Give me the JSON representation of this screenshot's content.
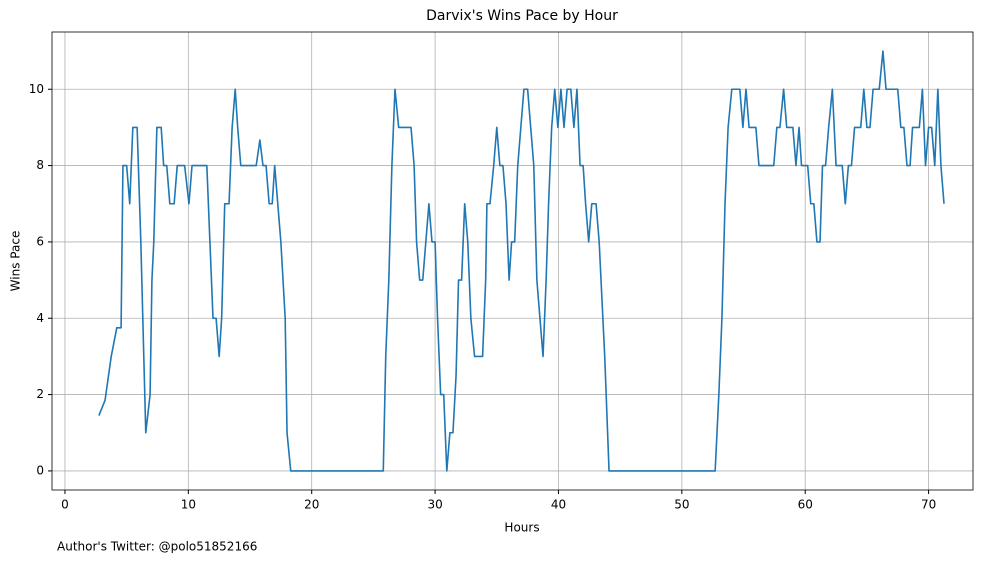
{
  "chart_data": {
    "type": "line",
    "title": "Darvix's Wins Pace by Hour",
    "x_label": "Hours",
    "y_label": "Wins Pace",
    "annotation": "Author's Twitter: @polo51852166",
    "xlim": [
      -1.05,
      73.6
    ],
    "ylim": [
      -0.5,
      11.5
    ],
    "xticks": [
      0,
      10,
      20,
      30,
      40,
      50,
      60,
      70
    ],
    "yticks": [
      0,
      2,
      4,
      6,
      8,
      10
    ],
    "grid": true,
    "x": [
      2.75,
      3.25,
      3.75,
      4.2,
      4.55,
      4.7,
      5.0,
      5.25,
      5.5,
      5.85,
      6.15,
      6.55,
      6.9,
      7.05,
      7.2,
      7.45,
      7.8,
      8.0,
      8.25,
      8.5,
      8.85,
      9.1,
      9.7,
      10.05,
      10.3,
      11.5,
      12.0,
      12.25,
      12.5,
      12.7,
      12.95,
      13.3,
      13.55,
      13.8,
      14.0,
      14.25,
      15.5,
      15.8,
      16.05,
      16.3,
      16.55,
      16.8,
      17.0,
      17.5,
      17.85,
      18.0,
      18.3,
      25.8,
      26.0,
      26.25,
      26.5,
      26.75,
      27.05,
      28.05,
      28.3,
      28.5,
      28.75,
      29.0,
      29.25,
      29.5,
      29.75,
      30.0,
      30.2,
      30.45,
      30.7,
      30.95,
      31.2,
      31.45,
      31.7,
      31.9,
      32.15,
      32.4,
      32.65,
      32.9,
      33.2,
      33.85,
      34.1,
      34.2,
      34.45,
      34.75,
      35.0,
      35.25,
      35.5,
      35.75,
      36.0,
      36.2,
      36.45,
      36.7,
      36.95,
      37.2,
      37.5,
      37.75,
      38.0,
      38.25,
      38.5,
      38.75,
      39.0,
      39.2,
      39.45,
      39.7,
      39.95,
      40.2,
      40.45,
      40.7,
      41.0,
      41.25,
      41.5,
      41.75,
      42.0,
      42.2,
      42.45,
      42.7,
      43.05,
      43.3,
      43.75,
      44.1,
      52.7,
      53.0,
      53.25,
      53.5,
      53.75,
      54.05,
      54.7,
      54.95,
      55.2,
      55.45,
      56.0,
      56.25,
      57.45,
      57.7,
      57.95,
      58.25,
      58.5,
      59.0,
      59.25,
      59.5,
      59.7,
      60.2,
      60.45,
      60.7,
      60.95,
      61.2,
      61.4,
      61.65,
      61.9,
      62.2,
      62.5,
      63.0,
      63.25,
      63.5,
      63.75,
      64.0,
      64.5,
      64.75,
      65.0,
      65.25,
      65.5,
      66.0,
      66.3,
      66.55,
      67.5,
      67.75,
      68.0,
      68.25,
      68.5,
      68.7,
      69.25,
      69.5,
      69.75,
      70.0,
      70.25,
      70.5,
      70.75,
      71.0,
      71.25
    ],
    "series": [
      {
        "name": "Wins Pace",
        "color": "#1f77b4",
        "values": [
          1.45,
          1.85,
          3,
          3.75,
          3.75,
          8,
          8,
          7,
          9,
          9,
          6,
          1,
          2,
          5,
          6,
          9,
          9,
          8,
          8,
          7,
          7,
          8,
          8,
          7,
          8,
          8,
          4,
          4,
          3,
          4,
          7,
          7,
          9,
          10,
          9,
          8,
          8,
          8.67,
          8,
          8,
          7,
          7,
          8,
          6,
          4,
          1,
          0,
          0,
          3,
          5,
          8,
          10,
          9,
          9,
          8,
          6,
          5,
          5,
          6,
          7,
          6,
          6,
          4,
          2,
          2,
          0,
          1,
          1,
          2.5,
          5,
          5,
          7,
          6,
          4,
          3,
          3,
          5,
          7,
          7,
          8,
          9,
          8,
          8,
          7,
          5,
          6,
          6,
          8,
          9,
          10,
          10,
          9,
          8,
          5,
          4,
          3,
          5,
          7,
          9,
          10,
          9,
          10,
          9,
          10,
          10,
          9,
          10,
          8,
          8,
          7,
          6,
          7,
          7,
          6,
          3,
          0,
          0,
          2,
          4,
          7,
          9,
          10,
          10,
          9,
          10,
          9,
          9,
          8,
          8,
          9,
          9,
          10,
          9,
          9,
          8,
          9,
          8,
          8,
          7,
          7,
          6,
          6,
          8,
          8,
          9,
          10,
          8,
          8,
          7,
          8,
          8,
          9,
          9,
          10,
          9,
          9,
          10,
          10,
          11,
          10,
          10,
          9,
          9,
          8,
          8,
          9,
          9,
          10,
          8,
          9,
          9,
          8,
          10,
          8,
          7
        ]
      }
    ]
  }
}
